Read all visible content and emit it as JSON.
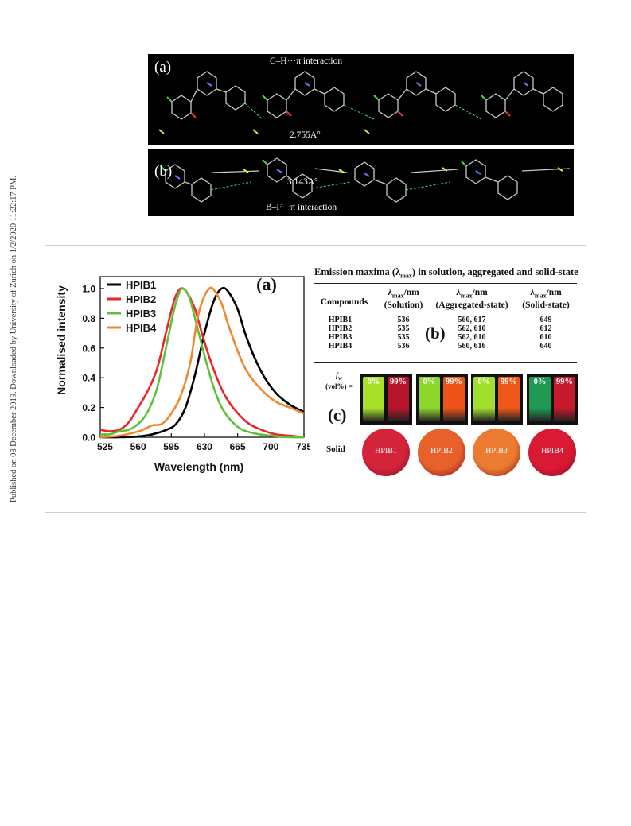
{
  "side_note": "Published on 03 December 2019. Downloaded by University of Zurich on 1/2/2020 11:22:17 PM.",
  "crystal_packing": {
    "panel_a": {
      "label": "(a)",
      "interaction": "C–H···π interaction",
      "distance": "2.755A°"
    },
    "panel_b": {
      "label": "(b)",
      "interaction": "B–F···π interaction",
      "distance": "3.143A°"
    }
  },
  "chart_data": {
    "type": "line",
    "panel_label": "(a)",
    "xlabel": "Wavelength (nm)",
    "ylabel": "Normalised intensity",
    "xlim": [
      520,
      735
    ],
    "ylim": [
      0,
      1.08
    ],
    "xticks": [
      525,
      560,
      595,
      630,
      665,
      700,
      735
    ],
    "yticks": [
      0.0,
      0.2,
      0.4,
      0.6,
      0.8,
      1.0
    ],
    "legend_position": "top-left",
    "series": [
      {
        "name": "HPIB1",
        "color": "#000000",
        "x": [
          520,
          540,
          560,
          575,
          590,
          600,
          610,
          620,
          630,
          640,
          648,
          655,
          665,
          675,
          690,
          705,
          720,
          735
        ],
        "y": [
          0.0,
          0.0,
          0.005,
          0.02,
          0.05,
          0.09,
          0.2,
          0.42,
          0.7,
          0.92,
          1.0,
          0.98,
          0.86,
          0.66,
          0.44,
          0.3,
          0.22,
          0.17
        ]
      },
      {
        "name": "HPIB2",
        "color": "#e8262b",
        "x": [
          520,
          530,
          540,
          550,
          560,
          570,
          580,
          590,
          598,
          603,
          607,
          612,
          620,
          630,
          640,
          650,
          660,
          675,
          690,
          705,
          720,
          735
        ],
        "y": [
          0.05,
          0.04,
          0.05,
          0.1,
          0.2,
          0.31,
          0.46,
          0.72,
          0.92,
          0.99,
          1.0,
          0.97,
          0.86,
          0.64,
          0.45,
          0.3,
          0.2,
          0.1,
          0.05,
          0.02,
          0.01,
          0.0
        ]
      },
      {
        "name": "HPIB3",
        "color": "#5ec13a",
        "x": [
          520,
          530,
          540,
          550,
          560,
          570,
          580,
          590,
          598,
          604,
          608,
          614,
          620,
          630,
          640,
          650,
          665,
          680,
          700,
          720,
          735
        ],
        "y": [
          0.02,
          0.02,
          0.04,
          0.05,
          0.09,
          0.17,
          0.33,
          0.62,
          0.86,
          0.98,
          1.0,
          0.94,
          0.8,
          0.55,
          0.33,
          0.18,
          0.07,
          0.03,
          0.01,
          0.0,
          0.0
        ]
      },
      {
        "name": "HPIB4",
        "color": "#f0892c",
        "x": [
          520,
          540,
          555,
          565,
          575,
          585,
          595,
          605,
          615,
          622,
          628,
          635,
          640,
          648,
          655,
          665,
          675,
          690,
          705,
          720,
          735
        ],
        "y": [
          0.0,
          0.01,
          0.03,
          0.05,
          0.08,
          0.09,
          0.16,
          0.28,
          0.5,
          0.78,
          0.92,
          1.0,
          0.99,
          0.9,
          0.76,
          0.58,
          0.44,
          0.32,
          0.24,
          0.2,
          0.16
        ]
      }
    ]
  },
  "table": {
    "title_prefix": "Emission maxima (λ",
    "title_sub": "max",
    "title_suffix": ") in solution, aggregated and solid-state",
    "panel_label": "(b)",
    "headers": {
      "compounds": "Compounds",
      "lambda_prefix": "λ",
      "lambda_sub": "max",
      "unit": "/nm",
      "solution": "(Solution)",
      "aggregated": "(Aggregated-state)",
      "solid": "(Solid-state)"
    },
    "rows": [
      {
        "compound": "HPIB1",
        "solution": "536",
        "aggregated": "560, 617",
        "solid": "649"
      },
      {
        "compound": "HPIB2",
        "solution": "535",
        "aggregated": "562, 610",
        "solid": "612"
      },
      {
        "compound": "HPIB3",
        "solution": "535",
        "aggregated": "562, 610",
        "solid": "610"
      },
      {
        "compound": "HPIB4",
        "solution": "536",
        "aggregated": "560, 616",
        "solid": "640"
      }
    ]
  },
  "photos": {
    "panel_label": "(c)",
    "fw_symbol": "f",
    "fw_sub": "w",
    "fw_unit": "(vol%) =",
    "solid_label": "Solid",
    "vials": [
      {
        "low": "0%",
        "high": "99%",
        "low_color": "#a8e02a",
        "high_color": "#b5142a"
      },
      {
        "low": "0%",
        "high": "99%",
        "low_color": "#8dd62b",
        "high_color": "#ee5419"
      },
      {
        "low": "0%",
        "high": "99%",
        "low_color": "#a2e02d",
        "high_color": "#f0571a"
      },
      {
        "low": "0%",
        "high": "99%",
        "low_color": "#1e9a52",
        "high_color": "#c6192c"
      }
    ],
    "solids": [
      {
        "name": "HPIB1",
        "color": "#d4243a"
      },
      {
        "name": "HPIB2",
        "color": "#e8602a"
      },
      {
        "name": "HPIB3",
        "color": "#ec7a30"
      },
      {
        "name": "HPIB4",
        "color": "#d81a34"
      }
    ]
  }
}
